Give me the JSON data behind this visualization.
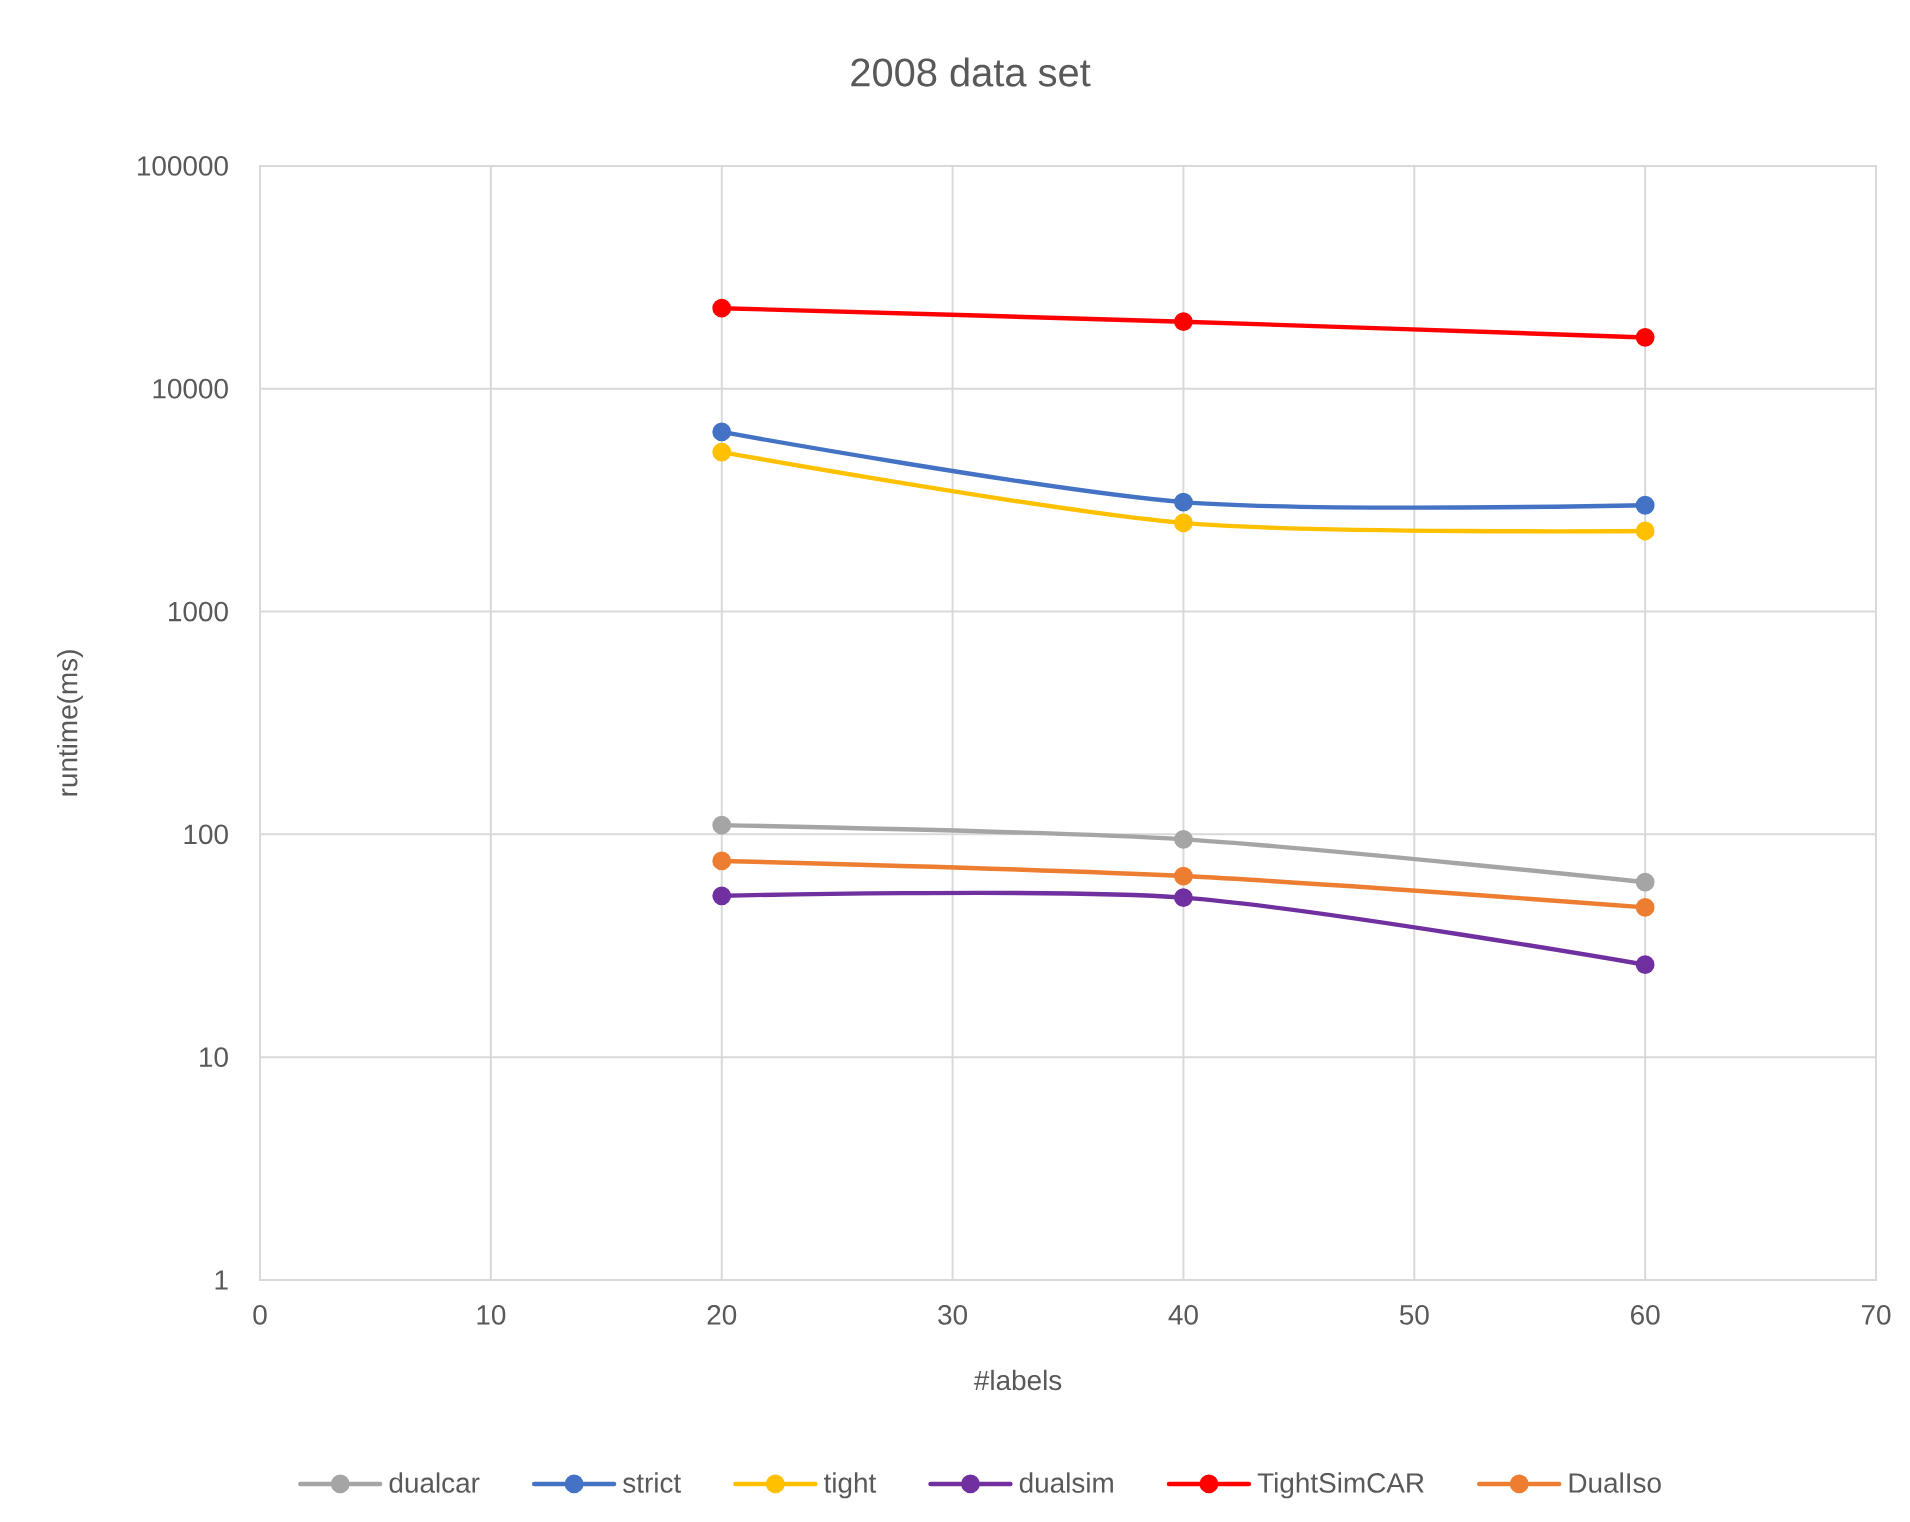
{
  "chart_data": {
    "type": "line",
    "title": "2008 data set",
    "xlabel": "#labels",
    "ylabel": "runtime(ms)",
    "x": [
      20,
      40,
      60
    ],
    "series": [
      {
        "name": "dualcar",
        "color": "#a5a5a5",
        "values": [
          110,
          95,
          61
        ]
      },
      {
        "name": "strict",
        "color": "#4472c4",
        "values": [
          6400,
          3100,
          3000
        ]
      },
      {
        "name": "tight",
        "color": "#ffc000",
        "values": [
          5200,
          2500,
          2300
        ]
      },
      {
        "name": "dualsim",
        "color": "#7030a0",
        "values": [
          53,
          52,
          26
        ]
      },
      {
        "name": "TightSimCAR",
        "color": "#ff0000",
        "values": [
          23000,
          20000,
          17000
        ]
      },
      {
        "name": "DualIso",
        "color": "#ed7d31",
        "values": [
          76,
          65,
          47
        ]
      }
    ],
    "xlim": [
      0,
      70
    ],
    "xticks": [
      0,
      10,
      20,
      30,
      40,
      50,
      60,
      70
    ],
    "ylim": [
      1,
      100000
    ],
    "yticks": [
      1,
      10,
      100,
      1000,
      10000,
      100000
    ],
    "log": "y",
    "grid": true,
    "legend": "bottom",
    "marker": "circle",
    "line_style": "solid"
  }
}
